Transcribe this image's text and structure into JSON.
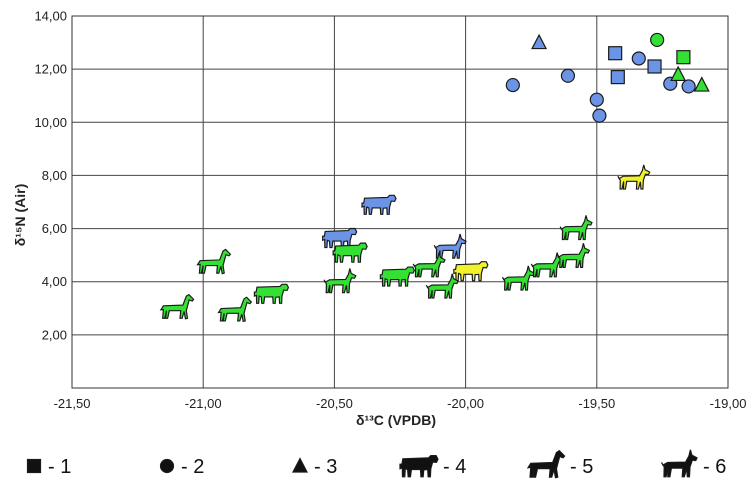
{
  "chart_data": {
    "type": "scatter",
    "xlabel": "δ¹³C (VPDB)",
    "ylabel": "δ¹⁵N (Air)",
    "xlim": [
      -21.5,
      -19.0
    ],
    "ylim": [
      0,
      14
    ],
    "x_ticks": [
      "-21,50",
      "-21,00",
      "-20,50",
      "-20,00",
      "-19,50",
      "-19,00"
    ],
    "y_ticks": [
      "2,00",
      "4,00",
      "6,00",
      "8,00",
      "10,00",
      "12,00",
      "14,00"
    ],
    "grid": true,
    "colors": {
      "blue": "#6b93e6",
      "green": "#33e033",
      "yellow": "#f2f22a"
    },
    "legend": [
      {
        "symbol": "square",
        "label": "- 1"
      },
      {
        "symbol": "circle",
        "label": "- 2"
      },
      {
        "symbol": "triangle",
        "label": "- 3"
      },
      {
        "symbol": "cow",
        "label": "- 4"
      },
      {
        "symbol": "horse",
        "label": "- 5"
      },
      {
        "symbol": "goat",
        "label": "- 6"
      }
    ],
    "points": [
      {
        "group": 1,
        "symbol": "square",
        "color": "blue",
        "x": -19.43,
        "y": 12.6
      },
      {
        "group": 1,
        "symbol": "square",
        "color": "blue",
        "x": -19.42,
        "y": 11.7
      },
      {
        "group": 1,
        "symbol": "square",
        "color": "blue",
        "x": -19.28,
        "y": 12.1
      },
      {
        "group": 1,
        "symbol": "square",
        "color": "green",
        "x": -19.17,
        "y": 12.45
      },
      {
        "group": 2,
        "symbol": "circle",
        "color": "blue",
        "x": -19.82,
        "y": 11.4
      },
      {
        "group": 2,
        "symbol": "circle",
        "color": "blue",
        "x": -19.61,
        "y": 11.75
      },
      {
        "group": 2,
        "symbol": "circle",
        "color": "blue",
        "x": -19.5,
        "y": 10.85
      },
      {
        "group": 2,
        "symbol": "circle",
        "color": "blue",
        "x": -19.49,
        "y": 10.25
      },
      {
        "group": 2,
        "symbol": "circle",
        "color": "blue",
        "x": -19.34,
        "y": 12.4
      },
      {
        "group": 2,
        "symbol": "circle",
        "color": "blue",
        "x": -19.22,
        "y": 11.45
      },
      {
        "group": 2,
        "symbol": "circle",
        "color": "blue",
        "x": -19.15,
        "y": 11.35
      },
      {
        "group": 2,
        "symbol": "circle",
        "color": "green",
        "x": -19.27,
        "y": 13.1
      },
      {
        "group": 3,
        "symbol": "triangle",
        "color": "blue",
        "x": -19.72,
        "y": 13.0
      },
      {
        "group": 3,
        "symbol": "triangle",
        "color": "green",
        "x": -19.19,
        "y": 11.8
      },
      {
        "group": 3,
        "symbol": "triangle",
        "color": "green",
        "x": -19.1,
        "y": 11.4
      },
      {
        "group": 4,
        "symbol": "cow",
        "color": "blue",
        "x": -20.33,
        "y": 6.9
      },
      {
        "group": 4,
        "symbol": "cow",
        "color": "blue",
        "x": -20.48,
        "y": 5.65
      },
      {
        "group": 4,
        "symbol": "cow",
        "color": "green",
        "x": -20.44,
        "y": 5.1
      },
      {
        "group": 4,
        "symbol": "cow",
        "color": "green",
        "x": -20.26,
        "y": 4.2
      },
      {
        "group": 4,
        "symbol": "cow",
        "color": "green",
        "x": -20.74,
        "y": 3.55
      },
      {
        "group": 4,
        "symbol": "cow",
        "color": "yellow",
        "x": -19.98,
        "y": 4.4
      },
      {
        "group": 5,
        "symbol": "horse",
        "color": "green",
        "x": -20.96,
        "y": 4.7
      },
      {
        "group": 5,
        "symbol": "horse",
        "color": "green",
        "x": -21.1,
        "y": 3.0
      },
      {
        "group": 5,
        "symbol": "horse",
        "color": "green",
        "x": -20.88,
        "y": 2.9
      },
      {
        "group": 6,
        "symbol": "goat",
        "color": "blue",
        "x": -20.06,
        "y": 5.25
      },
      {
        "group": 6,
        "symbol": "goat",
        "color": "green",
        "x": -20.48,
        "y": 3.95
      },
      {
        "group": 6,
        "symbol": "goat",
        "color": "green",
        "x": -20.14,
        "y": 4.55
      },
      {
        "group": 6,
        "symbol": "goat",
        "color": "green",
        "x": -20.09,
        "y": 3.75
      },
      {
        "group": 6,
        "symbol": "goat",
        "color": "green",
        "x": -19.8,
        "y": 4.05
      },
      {
        "group": 6,
        "symbol": "goat",
        "color": "green",
        "x": -19.69,
        "y": 4.55
      },
      {
        "group": 6,
        "symbol": "goat",
        "color": "green",
        "x": -19.59,
        "y": 4.9
      },
      {
        "group": 6,
        "symbol": "goat",
        "color": "green",
        "x": -19.58,
        "y": 5.95
      },
      {
        "group": 6,
        "symbol": "goat",
        "color": "yellow",
        "x": -19.36,
        "y": 7.85
      }
    ]
  }
}
